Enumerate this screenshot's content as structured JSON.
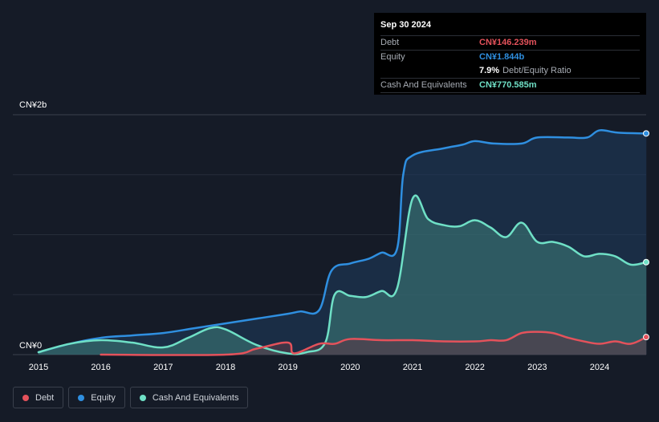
{
  "tooltip": {
    "date": "Sep 30 2024",
    "debt_label": "Debt",
    "debt_value": "CN¥146.239m",
    "equity_label": "Equity",
    "equity_value": "CN¥1.844b",
    "ratio_value": "7.9%",
    "ratio_label": "Debt/Equity Ratio",
    "cash_label": "Cash And Equivalents",
    "cash_value": "CN¥770.585m"
  },
  "legend": {
    "debt": "Debt",
    "equity": "Equity",
    "cash": "Cash And Equivalents"
  },
  "colors": {
    "debt": "#e4525b",
    "equity": "#2f8fe0",
    "cash": "#6fe0c6",
    "background": "#151b27"
  },
  "chart_data": {
    "type": "area",
    "y_unit": "CN¥ billions",
    "ylim": [
      0,
      2
    ],
    "ytick_labels": [
      "CN¥0",
      "CN¥2b"
    ],
    "xtick_labels": [
      "2015",
      "2016",
      "2017",
      "2018",
      "2019",
      "2020",
      "2021",
      "2022",
      "2023",
      "2024"
    ],
    "series": [
      {
        "name": "Equity",
        "points": [
          [
            2015.0,
            0.02
          ],
          [
            2015.5,
            0.09
          ],
          [
            2016.0,
            0.14
          ],
          [
            2016.5,
            0.16
          ],
          [
            2017.0,
            0.18
          ],
          [
            2017.5,
            0.22
          ],
          [
            2018.0,
            0.26
          ],
          [
            2018.5,
            0.3
          ],
          [
            2019.0,
            0.34
          ],
          [
            2019.2,
            0.36
          ],
          [
            2019.5,
            0.37
          ],
          [
            2019.7,
            0.7
          ],
          [
            2020.0,
            0.76
          ],
          [
            2020.3,
            0.8
          ],
          [
            2020.5,
            0.85
          ],
          [
            2020.75,
            0.88
          ],
          [
            2020.85,
            1.5
          ],
          [
            2021.0,
            1.66
          ],
          [
            2021.5,
            1.72
          ],
          [
            2021.8,
            1.75
          ],
          [
            2022.0,
            1.78
          ],
          [
            2022.3,
            1.76
          ],
          [
            2022.75,
            1.76
          ],
          [
            2023.0,
            1.81
          ],
          [
            2023.5,
            1.81
          ],
          [
            2023.8,
            1.81
          ],
          [
            2024.0,
            1.87
          ],
          [
            2024.3,
            1.85
          ],
          [
            2024.75,
            1.844
          ]
        ]
      },
      {
        "name": "Cash And Equivalents",
        "points": [
          [
            2015.0,
            0.02
          ],
          [
            2015.5,
            0.09
          ],
          [
            2016.0,
            0.12
          ],
          [
            2016.5,
            0.1
          ],
          [
            2017.0,
            0.06
          ],
          [
            2017.4,
            0.14
          ],
          [
            2017.75,
            0.22
          ],
          [
            2018.0,
            0.21
          ],
          [
            2018.5,
            0.08
          ],
          [
            2019.0,
            0.01
          ],
          [
            2019.3,
            0.02
          ],
          [
            2019.6,
            0.1
          ],
          [
            2019.75,
            0.5
          ],
          [
            2020.0,
            0.49
          ],
          [
            2020.25,
            0.48
          ],
          [
            2020.5,
            0.53
          ],
          [
            2020.75,
            0.55
          ],
          [
            2021.0,
            1.3
          ],
          [
            2021.25,
            1.13
          ],
          [
            2021.5,
            1.08
          ],
          [
            2021.75,
            1.07
          ],
          [
            2022.0,
            1.12
          ],
          [
            2022.25,
            1.06
          ],
          [
            2022.5,
            0.98
          ],
          [
            2022.75,
            1.1
          ],
          [
            2023.0,
            0.94
          ],
          [
            2023.25,
            0.94
          ],
          [
            2023.5,
            0.9
          ],
          [
            2023.75,
            0.82
          ],
          [
            2024.0,
            0.84
          ],
          [
            2024.25,
            0.82
          ],
          [
            2024.5,
            0.75
          ],
          [
            2024.75,
            0.771
          ]
        ]
      },
      {
        "name": "Debt",
        "points": [
          [
            2016.0,
            0.0
          ],
          [
            2018.0,
            0.0
          ],
          [
            2018.5,
            0.05
          ],
          [
            2019.0,
            0.1
          ],
          [
            2019.1,
            0.01
          ],
          [
            2019.5,
            0.09
          ],
          [
            2019.75,
            0.09
          ],
          [
            2020.0,
            0.13
          ],
          [
            2020.5,
            0.12
          ],
          [
            2021.0,
            0.12
          ],
          [
            2021.5,
            0.11
          ],
          [
            2022.0,
            0.11
          ],
          [
            2022.25,
            0.12
          ],
          [
            2022.5,
            0.12
          ],
          [
            2022.75,
            0.18
          ],
          [
            2023.0,
            0.19
          ],
          [
            2023.25,
            0.18
          ],
          [
            2023.5,
            0.14
          ],
          [
            2023.75,
            0.11
          ],
          [
            2024.0,
            0.09
          ],
          [
            2024.25,
            0.11
          ],
          [
            2024.5,
            0.09
          ],
          [
            2024.75,
            0.146
          ]
        ]
      }
    ]
  }
}
